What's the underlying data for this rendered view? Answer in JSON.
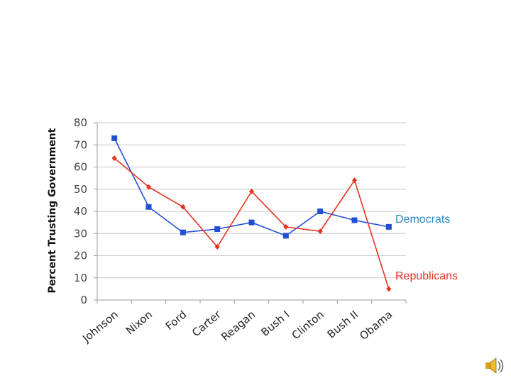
{
  "chart_data": {
    "type": "line",
    "title": "",
    "xlabel": "",
    "ylabel": "Percent Trusting Government",
    "categories": [
      "Johnson",
      "Nixon",
      "Ford",
      "Carter",
      "Reagan",
      "Bush I",
      "Clinton",
      "Bush II",
      "Obama"
    ],
    "ylim": [
      0,
      80
    ],
    "yticks": [
      0,
      10,
      20,
      30,
      40,
      50,
      60,
      70,
      80
    ],
    "grid": true,
    "series": [
      {
        "name": "Democrats",
        "color": "#1f4fd6",
        "label_color": "#2a8bc9",
        "marker": "square",
        "values": [
          73,
          42,
          30.5,
          32,
          35,
          29,
          40,
          36,
          33
        ]
      },
      {
        "name": "Republicans",
        "color": "#e8321e",
        "label_color": "#e8321e",
        "marker": "diamond",
        "values": [
          64,
          51,
          42,
          24,
          49,
          33,
          31,
          54,
          5
        ]
      }
    ]
  },
  "icons": {
    "speaker": "speaker-icon"
  }
}
